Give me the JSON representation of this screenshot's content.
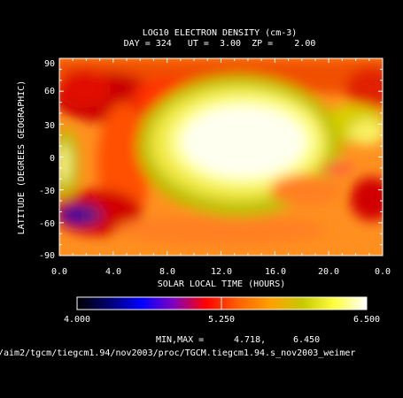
{
  "chart_data": {
    "type": "heatmap",
    "title": "LOG10 ELECTRON DENSITY (cm-3)",
    "subtitle": "DAY = 324   UT =  3.00  ZP =    2.00",
    "xlabel": "SOLAR LOCAL TIME (HOURS)",
    "ylabel": "LATITUDE (DEGREES GEOGRAPHIC)",
    "xlim": [
      0,
      24
    ],
    "ylim": [
      -90,
      90
    ],
    "x_tick_labels": [
      "0.0",
      "4.0",
      "8.0",
      "12.0",
      "16.0",
      "20.0",
      "0.0"
    ],
    "y_tick_labels": [
      "90",
      "60",
      "30",
      "0",
      "-30",
      "-60",
      "-90"
    ],
    "colorbar": {
      "min_label": "4.000",
      "mid_label": "5.250",
      "max_label": "6.500",
      "stops": [
        "#000000",
        "#000070",
        "#0000ff",
        "#8000c0",
        "#ff0000",
        "#ff6000",
        "#ffa000",
        "#c8c800",
        "#ffff40",
        "#ffffff"
      ]
    },
    "minmax_label": "MIN,MAX =",
    "min_value": "4.718,",
    "max_value": "6.450",
    "source_path": "/aim2/tgcm/tiegcm1.94/nov2003/proc/TGCM.tiegcm1.94.s_nov2003_weimer"
  }
}
